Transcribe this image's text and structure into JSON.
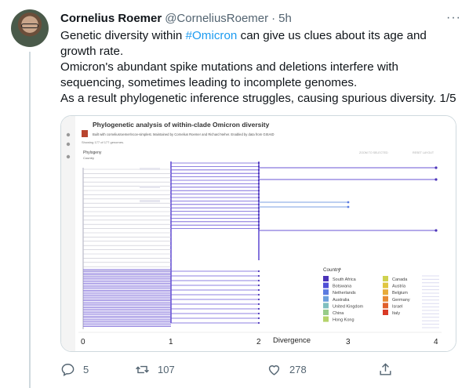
{
  "tweet": {
    "author_name": "Cornelius Roemer",
    "handle": "@CorneliusRoemer",
    "separator": "·",
    "time": "5h",
    "lines": [
      {
        "pre": "Genetic diversity within ",
        "tag": "#Omicron",
        "post": " can give us clues about its age and"
      },
      {
        "pre": "growth rate.",
        "tag": "",
        "post": ""
      },
      {
        "pre": "Omicron's abundant spike mutations and deletions interfere with",
        "tag": "",
        "post": ""
      },
      {
        "pre": "sequencing, sometimes leading to incomplete genomes.",
        "tag": "",
        "post": ""
      },
      {
        "pre": "As a result phylogenetic inference struggles, causing spurious diversity. 1/5",
        "tag": "",
        "post": ""
      }
    ],
    "counts": {
      "replies": "5",
      "retweets": "107",
      "likes": "278"
    }
  },
  "media": {
    "title": "Phylogenetic analysis of within-clade Omicron diversity",
    "byline": "Built with corneliusroemer/ncov-simplest. Maintained by Cornelius Roemer and Richard Neher. Enabled by data from GISAID",
    "showing": "Showing 177 of 177 genomes.",
    "panel_label": "Phylogeny",
    "panel_sub": "Country",
    "buttons": [
      "ZOOM TO SELECTED",
      "RESET LAYOUT"
    ],
    "legend_title": "Country",
    "legend": [
      {
        "label": "South Africa",
        "color": "#4b33b8"
      },
      {
        "label": "Botswana",
        "color": "#4f4fd6"
      },
      {
        "label": "Netherlands",
        "color": "#5b7be0"
      },
      {
        "label": "Australia",
        "color": "#6a9fdc"
      },
      {
        "label": "United Kingdom",
        "color": "#7fbfbf"
      },
      {
        "label": "China",
        "color": "#98cc8a"
      },
      {
        "label": "Hong Kong",
        "color": "#b5d36a"
      },
      {
        "label": "Canada",
        "color": "#cfd24f"
      },
      {
        "label": "Austria",
        "color": "#e0c640"
      },
      {
        "label": "Belgium",
        "color": "#e7ab3a"
      },
      {
        "label": "Germany",
        "color": "#e68a34"
      },
      {
        "label": "Israel",
        "color": "#e0602c"
      },
      {
        "label": "Italy",
        "color": "#d93a26"
      }
    ],
    "axis_label": "Divergence",
    "axis_ticks": [
      "0",
      "1",
      "2",
      "3",
      "4"
    ]
  }
}
